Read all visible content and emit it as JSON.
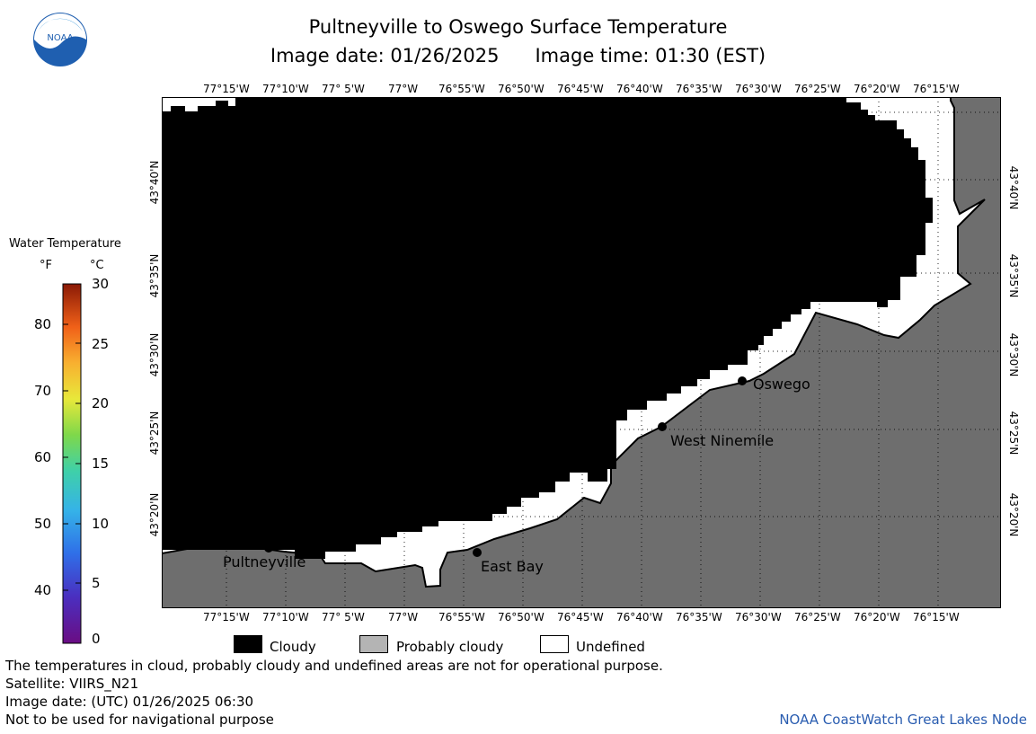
{
  "title": "Pultneyville to Oswego Surface Temperature",
  "image_date_label": "Image date: 01/26/2025",
  "image_time_label": "Image time: 01:30 (EST)",
  "logo_text": "NOAA",
  "lon_ticks": [
    "77°15'W",
    "77°10'W",
    "77° 5'W",
    "77°W",
    "76°55'W",
    "76°50'W",
    "76°45'W",
    "76°40'W",
    "76°35'W",
    "76°30'W",
    "76°25'W",
    "76°20'W",
    "76°15'W"
  ],
  "lat_ticks": [
    "43°40'N",
    "43°35'N",
    "43°30'N",
    "43°25'N",
    "43°20'N"
  ],
  "legend": {
    "title": "Water Temperature",
    "unit_f": "°F",
    "unit_c": "°C",
    "f_values": [
      "80",
      "70",
      "60",
      "50",
      "40"
    ],
    "c_values": [
      "30",
      "25",
      "20",
      "15",
      "10",
      "5",
      "0"
    ]
  },
  "places": [
    {
      "name": "Oswego"
    },
    {
      "name": "West Ninemile"
    },
    {
      "name": "East Bay"
    },
    {
      "name": "Pultneyville"
    }
  ],
  "key": {
    "cloudy": "Cloudy",
    "probably_cloudy": "Probably cloudy",
    "undefined": "Undefined"
  },
  "notes": {
    "disclaimer": "The temperatures in cloud, probably cloudy and undefined areas are not for operational purpose.",
    "satellite": "Satellite: VIIRS_N21",
    "utc_date": "Image date: (UTC) 01/26/2025  06:30",
    "navigation": "Not to be used for navigational purpose"
  },
  "credit": "NOAA CoastWatch Great Lakes Node",
  "colors": {
    "cloudy": "#000000",
    "land": "#6e6e6e",
    "probably_cloudy": "#b4b4b4",
    "undefined": "#ffffff",
    "credit": "#2a5db0"
  }
}
